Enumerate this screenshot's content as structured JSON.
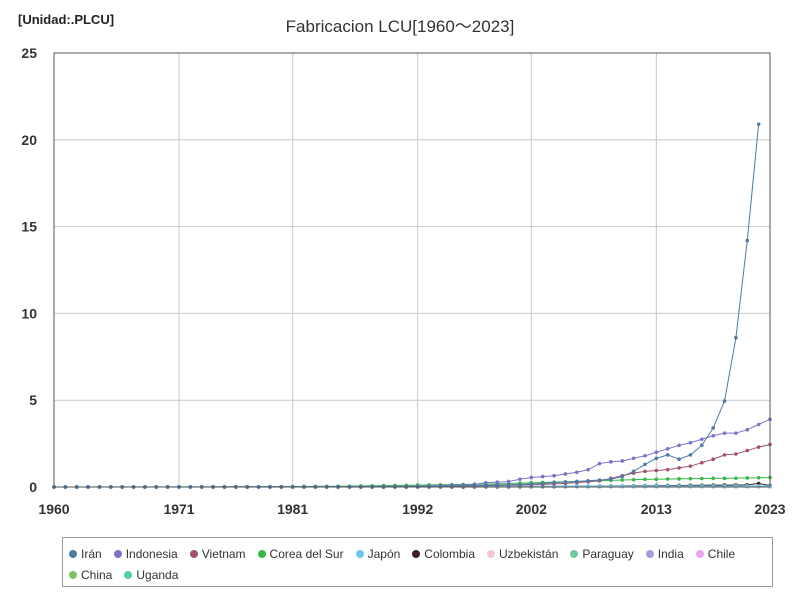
{
  "chart_data": {
    "type": "line",
    "title": "Fabricacion LCU[1960～2023]",
    "unit_label": "[Unidad:.PLCU]",
    "xlabel": "",
    "ylabel": "",
    "xlim": [
      1960,
      2023
    ],
    "ylim": [
      0,
      25
    ],
    "x_ticks": [
      1960,
      1971,
      1981,
      1992,
      2002,
      2013,
      2023
    ],
    "y_ticks": [
      0,
      5,
      10,
      15,
      20,
      25
    ],
    "grid": true,
    "legend_position": "bottom",
    "series": [
      {
        "name": "Irán",
        "color": "#4e7ba6",
        "start_year": 1960,
        "values": [
          0.001,
          0.001,
          0.001,
          0.001,
          0.001,
          0.001,
          0.001,
          0.001,
          0.001,
          0.001,
          0.002,
          0.002,
          0.002,
          0.002,
          0.003,
          0.003,
          0.004,
          0.004,
          0.004,
          0.005,
          0.006,
          0.007,
          0.008,
          0.009,
          0.01,
          0.011,
          0.012,
          0.013,
          0.014,
          0.016,
          0.02,
          0.025,
          0.03,
          0.038,
          0.05,
          0.065,
          0.08,
          0.09,
          0.1,
          0.115,
          0.13,
          0.15,
          0.17,
          0.2,
          0.25,
          0.28,
          0.32,
          0.36,
          0.4,
          0.45,
          0.6,
          0.9,
          1.3,
          1.65,
          1.85,
          1.6,
          1.85,
          2.4,
          3.4,
          4.95,
          8.6,
          14.2,
          20.9,
          null
        ]
      },
      {
        "name": "Indonesia",
        "color": "#7b74c9",
        "start_year": 1960,
        "values": [
          0.0,
          0.0,
          0.0,
          0.0,
          0.0,
          0.0,
          0.0,
          0.0,
          0.001,
          0.001,
          0.001,
          0.001,
          0.002,
          0.002,
          0.003,
          0.004,
          0.005,
          0.006,
          0.007,
          0.008,
          0.01,
          0.012,
          0.014,
          0.016,
          0.018,
          0.02,
          0.022,
          0.024,
          0.027,
          0.03,
          0.035,
          0.04,
          0.05,
          0.06,
          0.08,
          0.1,
          0.12,
          0.15,
          0.25,
          0.28,
          0.32,
          0.45,
          0.55,
          0.6,
          0.65,
          0.75,
          0.85,
          1.0,
          1.35,
          1.45,
          1.5,
          1.65,
          1.8,
          2.0,
          2.2,
          2.4,
          2.55,
          2.75,
          2.95,
          3.1,
          3.1,
          3.3,
          3.6,
          3.9
        ]
      },
      {
        "name": "Vietnam",
        "color": "#a3536a",
        "start_year": 1985,
        "values": [
          0.001,
          0.001,
          0.002,
          0.003,
          0.005,
          0.008,
          0.012,
          0.02,
          0.03,
          0.04,
          0.05,
          0.06,
          0.07,
          0.08,
          0.09,
          0.1,
          0.11,
          0.13,
          0.15,
          0.18,
          0.21,
          0.25,
          0.3,
          0.35,
          0.5,
          0.65,
          0.8,
          0.9,
          0.95,
          1.0,
          1.1,
          1.2,
          1.4,
          1.6,
          1.85,
          1.9,
          2.1,
          2.3,
          2.45
        ]
      },
      {
        "name": "Corea del Sur",
        "color": "#37b84a",
        "start_year": 1960,
        "values": [
          0.0,
          0.0,
          0.0,
          0.0,
          0.0,
          0.0,
          0.0,
          0.0,
          0.0,
          0.0,
          0.001,
          0.001,
          0.002,
          0.003,
          0.004,
          0.005,
          0.007,
          0.009,
          0.012,
          0.015,
          0.02,
          0.025,
          0.03,
          0.035,
          0.04,
          0.045,
          0.05,
          0.06,
          0.07,
          0.08,
          0.09,
          0.1,
          0.11,
          0.12,
          0.13,
          0.14,
          0.15,
          0.16,
          0.17,
          0.18,
          0.2,
          0.22,
          0.24,
          0.26,
          0.28,
          0.3,
          0.32,
          0.34,
          0.36,
          0.38,
          0.4,
          0.42,
          0.44,
          0.45,
          0.46,
          0.47,
          0.48,
          0.49,
          0.5,
          0.5,
          0.51,
          0.52,
          0.53,
          0.55
        ]
      },
      {
        "name": "Japón",
        "color": "#6ec7ea",
        "start_year": 1960,
        "values": [
          0.002,
          0.002,
          0.003,
          0.004,
          0.005,
          0.006,
          0.007,
          0.008,
          0.009,
          0.01,
          0.012,
          0.013,
          0.014,
          0.015,
          0.016,
          0.017,
          0.018,
          0.019,
          0.02,
          0.021,
          0.022,
          0.023,
          0.024,
          0.025,
          0.026,
          0.027,
          0.028,
          0.029,
          0.03,
          0.031,
          0.032,
          0.033,
          0.034,
          0.035,
          0.036,
          0.037,
          0.038,
          0.039,
          0.04,
          0.041,
          0.042,
          0.043,
          0.044,
          0.045,
          0.046,
          0.047,
          0.048,
          0.049,
          0.05,
          0.051,
          0.052,
          0.053,
          0.054,
          0.055,
          0.056,
          0.057,
          0.058,
          0.059,
          0.06,
          0.061,
          0.062,
          0.063,
          0.064,
          0.065
        ]
      },
      {
        "name": "Colombia",
        "color": "#3b1f22",
        "start_year": 1960,
        "values": [
          0.0,
          0.0,
          0.0,
          0.0,
          0.0,
          0.0,
          0.0,
          0.0,
          0.0,
          0.0,
          0.0,
          0.0,
          0.0,
          0.0,
          0.0,
          0.0,
          0.0,
          0.0,
          0.0,
          0.0,
          0.001,
          0.001,
          0.001,
          0.002,
          0.002,
          0.003,
          0.003,
          0.004,
          0.005,
          0.006,
          0.007,
          0.008,
          0.009,
          0.01,
          0.012,
          0.014,
          0.016,
          0.018,
          0.02,
          0.022,
          0.024,
          0.026,
          0.028,
          0.03,
          0.035,
          0.04,
          0.045,
          0.05,
          0.055,
          0.06,
          0.065,
          0.07,
          0.075,
          0.08,
          0.085,
          0.09,
          0.095,
          0.1,
          0.105,
          0.11,
          0.115,
          0.12,
          0.2,
          0.09
        ]
      },
      {
        "name": "Uzbekistán",
        "color": "#f3c8d6",
        "start_year": 1992,
        "values": [
          0.0,
          0.0,
          0.0,
          0.0,
          0.0,
          0.001,
          0.001,
          0.001,
          0.002,
          0.002,
          0.003,
          0.003,
          0.004,
          0.004,
          0.005,
          0.006,
          0.007,
          0.008,
          0.009,
          0.01,
          0.012,
          0.014,
          0.016,
          0.018,
          0.02,
          0.022,
          0.025,
          0.028,
          0.03,
          0.033,
          0.035,
          0.038
        ]
      },
      {
        "name": "Paraguay",
        "color": "#6fc79e",
        "start_year": 1960,
        "values": [
          0.0,
          0.0,
          0.0,
          0.0,
          0.0,
          0.0,
          0.0,
          0.0,
          0.0,
          0.0,
          0.0,
          0.0,
          0.0,
          0.0,
          0.0,
          0.0,
          0.0,
          0.0,
          0.0,
          0.0,
          0.0,
          0.0,
          0.0,
          0.0,
          0.0,
          0.0,
          0.0,
          0.0,
          0.0,
          0.0,
          0.001,
          0.001,
          0.001,
          0.001,
          0.002,
          0.002,
          0.002,
          0.003,
          0.003,
          0.003,
          0.004,
          0.004,
          0.005,
          0.005,
          0.006,
          0.006,
          0.007,
          0.007,
          0.008,
          0.008,
          0.009,
          0.009,
          0.01,
          0.01,
          0.011,
          0.011,
          0.012,
          0.012,
          0.013,
          0.013,
          0.014,
          0.014,
          0.015,
          0.015
        ]
      },
      {
        "name": "India",
        "color": "#a49de0",
        "start_year": 1960,
        "values": [
          0.0,
          0.0,
          0.0,
          0.0,
          0.0,
          0.0,
          0.0,
          0.0,
          0.0,
          0.0,
          0.0,
          0.0,
          0.0,
          0.0,
          0.0,
          0.0,
          0.0,
          0.0,
          0.0,
          0.0,
          0.0,
          0.0,
          0.0,
          0.0,
          0.0,
          0.0,
          0.0,
          0.0,
          0.0,
          0.0,
          0.001,
          0.001,
          0.001,
          0.001,
          0.002,
          0.002,
          0.002,
          0.003,
          0.003,
          0.003,
          0.004,
          0.004,
          0.005,
          0.005,
          0.006,
          0.006,
          0.007,
          0.007,
          0.008,
          0.008,
          0.009,
          0.009,
          0.01,
          0.01,
          0.011,
          0.011,
          0.012,
          0.012,
          0.013,
          0.013,
          0.014,
          0.014,
          0.015,
          0.015
        ]
      },
      {
        "name": "Chile",
        "color": "#e8a6ef",
        "start_year": 1960,
        "values": [
          0.0,
          0.0,
          0.0,
          0.0,
          0.0,
          0.0,
          0.0,
          0.0,
          0.0,
          0.0,
          0.0,
          0.0,
          0.0,
          0.0,
          0.0,
          0.0,
          0.0,
          0.0,
          0.0,
          0.0,
          0.0,
          0.0,
          0.0,
          0.0,
          0.0,
          0.0,
          0.0,
          0.0,
          0.0,
          0.0,
          0.001,
          0.001,
          0.001,
          0.001,
          0.002,
          0.002,
          0.002,
          0.003,
          0.003,
          0.003,
          0.004,
          0.004,
          0.005,
          0.005,
          0.006,
          0.006,
          0.007,
          0.007,
          0.008,
          0.008,
          0.009,
          0.009,
          0.01,
          0.01,
          0.011,
          0.011,
          0.012,
          0.012,
          0.013,
          0.013,
          0.014,
          0.014,
          0.015,
          0.015
        ]
      },
      {
        "name": "China",
        "color": "#7cc464",
        "start_year": 1960,
        "values": [
          0.0,
          0.0,
          0.0,
          0.0,
          0.0,
          0.0,
          0.0,
          0.0,
          0.0,
          0.0,
          0.0,
          0.0,
          0.0,
          0.0,
          0.0,
          0.0,
          0.0,
          0.0,
          0.0,
          0.0,
          0.0,
          0.0,
          0.0,
          0.0,
          0.0,
          0.0,
          0.0,
          0.0,
          0.0,
          0.0,
          0.001,
          0.001,
          0.001,
          0.001,
          0.002,
          0.002,
          0.002,
          0.003,
          0.003,
          0.003,
          0.004,
          0.004,
          0.005,
          0.005,
          0.006,
          0.006,
          0.007,
          0.007,
          0.008,
          0.008,
          0.009,
          0.009,
          0.01,
          0.01,
          0.011,
          0.011,
          0.012,
          0.012,
          0.013,
          0.013,
          0.014,
          0.014,
          0.015,
          0.015
        ]
      },
      {
        "name": "Uganda",
        "color": "#4fd1a8",
        "start_year": 1960,
        "values": [
          0.0,
          0.0,
          0.0,
          0.0,
          0.0,
          0.0,
          0.0,
          0.0,
          0.0,
          0.0,
          0.0,
          0.0,
          0.0,
          0.0,
          0.0,
          0.0,
          0.0,
          0.0,
          0.0,
          0.0,
          0.0,
          0.0,
          0.0,
          0.0,
          0.0,
          0.0,
          0.0,
          0.0,
          0.0,
          0.0,
          0.001,
          0.001,
          0.001,
          0.001,
          0.002,
          0.002,
          0.002,
          0.003,
          0.003,
          0.003,
          0.004,
          0.004,
          0.005,
          0.005,
          0.006,
          0.006,
          0.007,
          0.007,
          0.008,
          0.008,
          0.009,
          0.009,
          0.01,
          0.01,
          0.011,
          0.011,
          0.012,
          0.012,
          0.013,
          0.013,
          0.014,
          0.014,
          0.015,
          0.015
        ]
      }
    ]
  }
}
